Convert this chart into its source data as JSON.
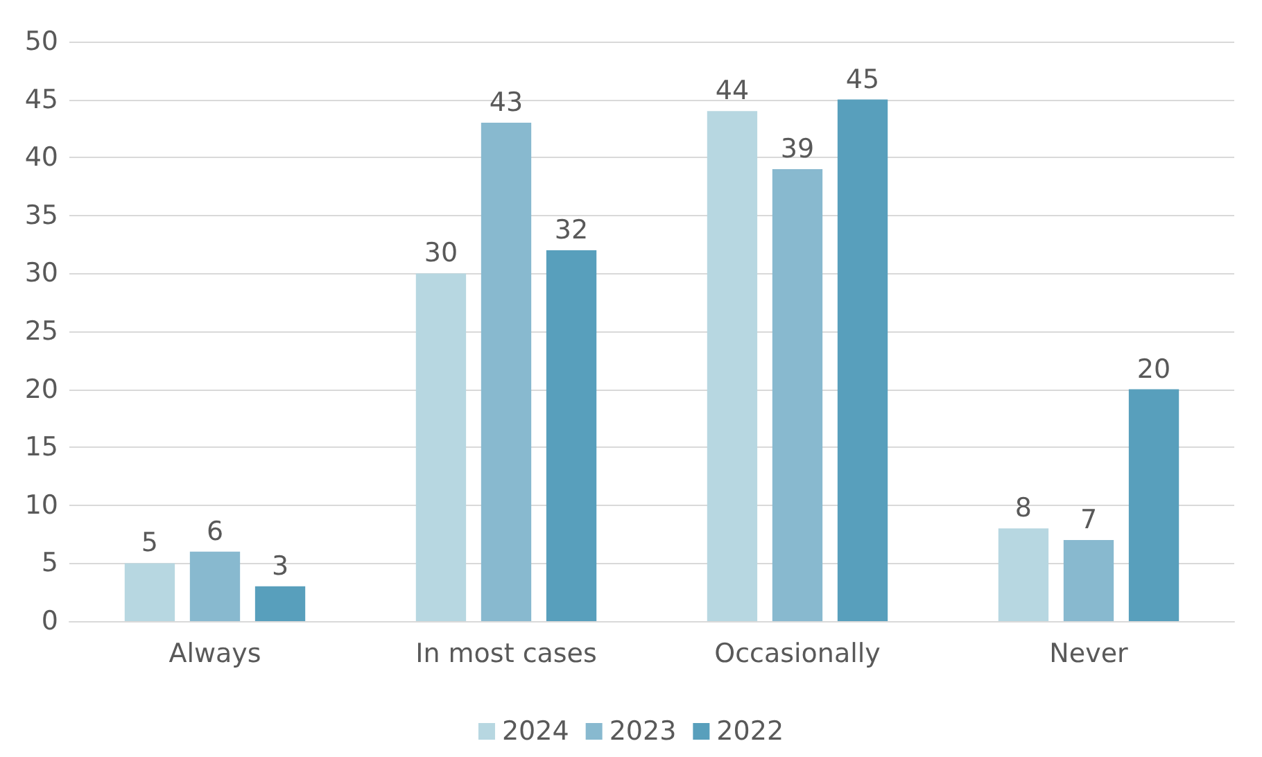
{
  "chart_data": {
    "type": "bar",
    "categories": [
      "Always",
      "In most cases",
      "Occasionally",
      "Never"
    ],
    "series": [
      {
        "name": "2024",
        "color": "#b7d7e1",
        "values": [
          5,
          30,
          44,
          8
        ]
      },
      {
        "name": "2023",
        "color": "#88b9cf",
        "values": [
          6,
          43,
          39,
          7
        ]
      },
      {
        "name": "2022",
        "color": "#589fbc",
        "values": [
          3,
          32,
          45,
          20
        ]
      }
    ],
    "ylim": [
      0,
      50
    ],
    "yticks": [
      0,
      5,
      10,
      15,
      20,
      25,
      30,
      35,
      40,
      45,
      50
    ],
    "grid": "y",
    "legend": "bottom",
    "data_labels": true
  }
}
